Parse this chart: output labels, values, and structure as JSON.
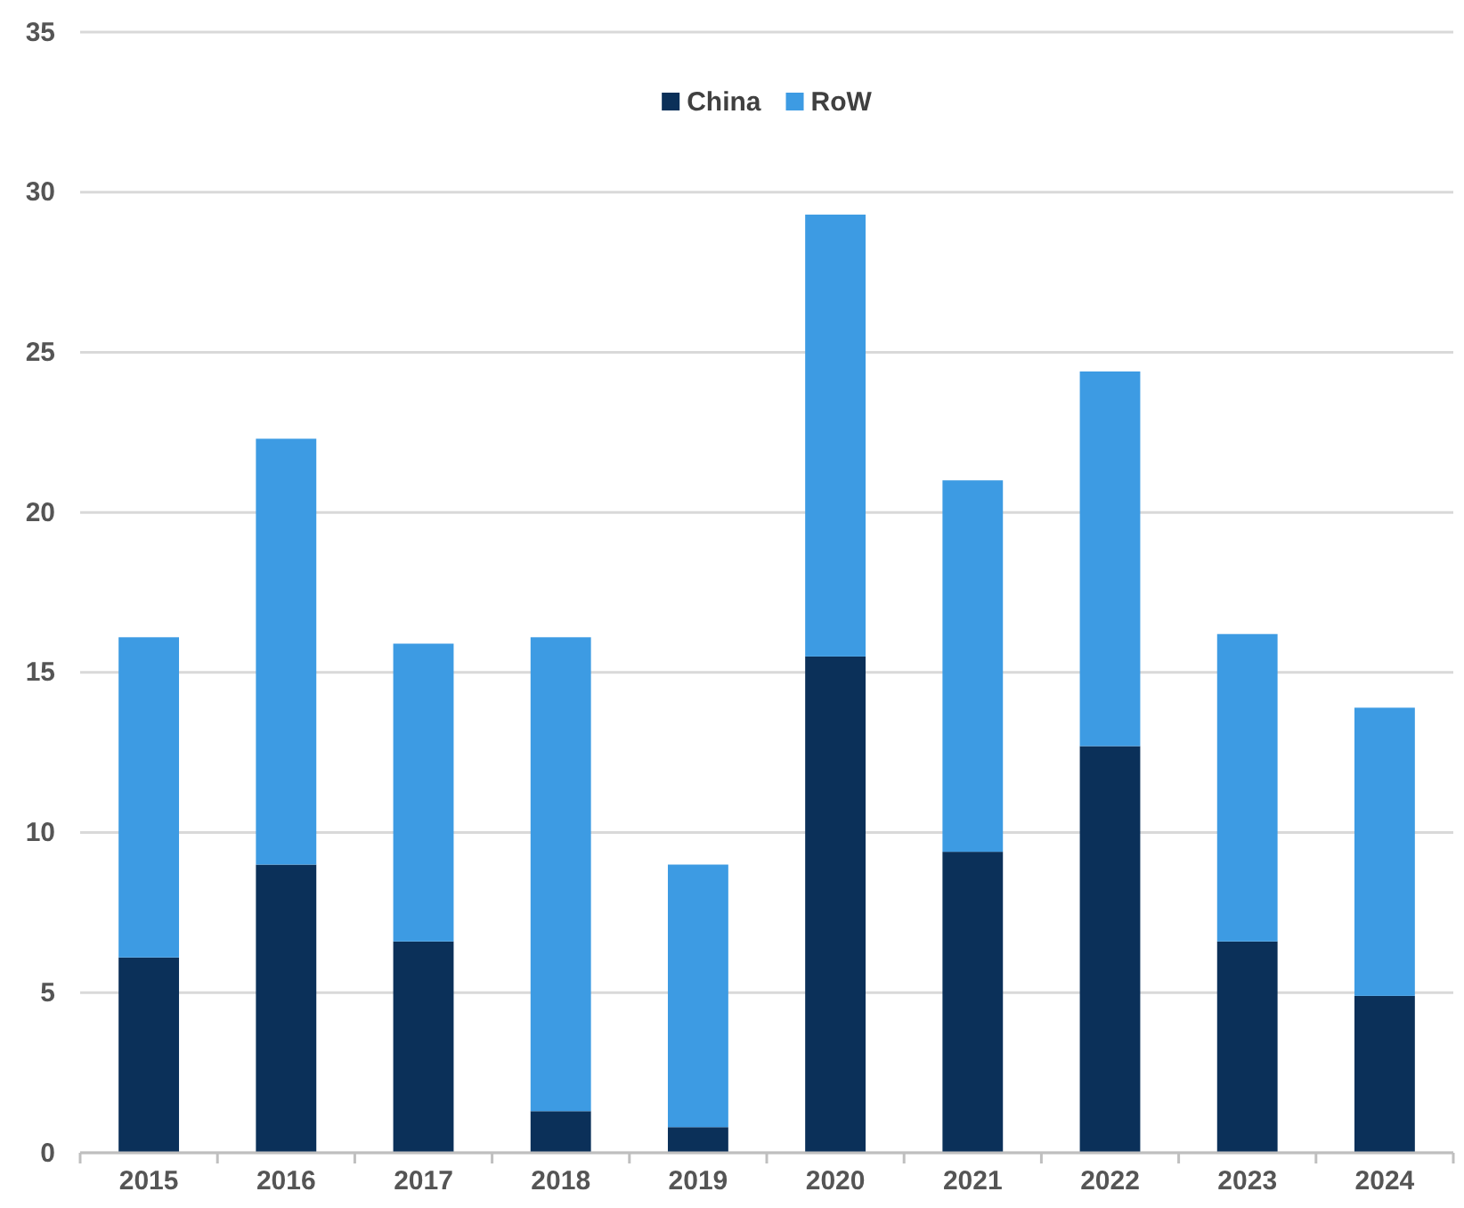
{
  "chart_data": {
    "type": "bar",
    "stacked": true,
    "categories": [
      "2015",
      "2016",
      "2017",
      "2018",
      "2019",
      "2020",
      "2021",
      "2022",
      "2023",
      "2024"
    ],
    "series": [
      {
        "name": "China",
        "color": "#0b3059",
        "values": [
          6.1,
          9.0,
          6.6,
          1.3,
          0.8,
          15.5,
          9.4,
          12.7,
          6.6,
          4.9
        ]
      },
      {
        "name": "RoW",
        "color": "#3d9be3",
        "values": [
          10.0,
          13.3,
          9.3,
          14.8,
          8.2,
          13.8,
          11.6,
          11.7,
          9.6,
          9.0
        ]
      }
    ],
    "ylim": [
      0,
      35
    ],
    "yticks": [
      0,
      5,
      10,
      15,
      20,
      25,
      30,
      35
    ],
    "grid": "y",
    "legend": "top"
  }
}
